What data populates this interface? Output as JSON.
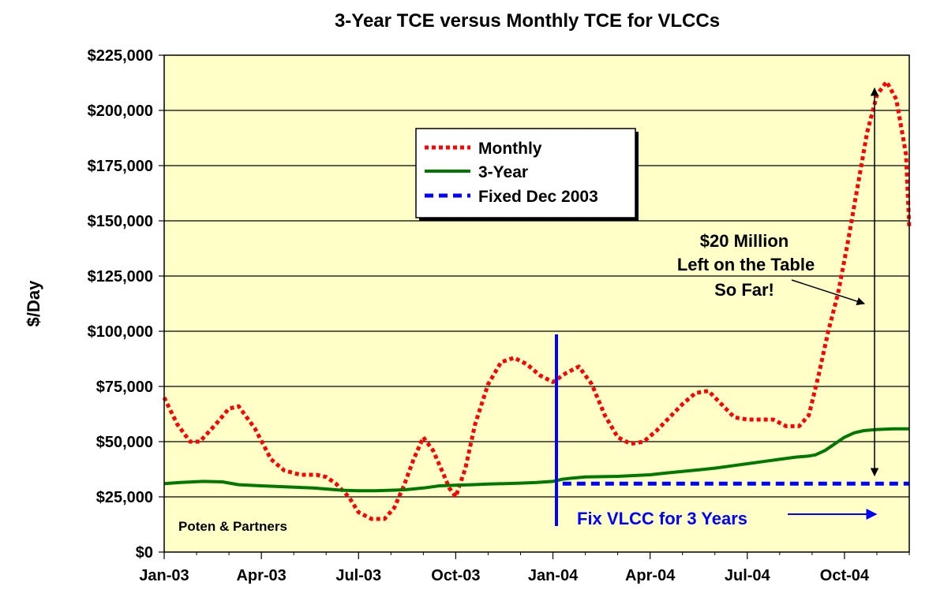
{
  "chart_data": {
    "type": "line",
    "title": "3-Year TCE versus Monthly TCE for VLCCs",
    "xlabel": "",
    "ylabel": "$/Day",
    "ylim": [
      0,
      225000
    ],
    "yticks": [
      0,
      25000,
      50000,
      75000,
      100000,
      125000,
      150000,
      175000,
      200000,
      225000
    ],
    "ytick_labels": [
      "$0",
      "$25,000",
      "$50,000",
      "$75,000",
      "$100,000",
      "$125,000",
      "$150,000",
      "$175,000",
      "$200,000",
      "$225,000"
    ],
    "xlim": [
      0,
      23
    ],
    "xticks": [
      0,
      3,
      6,
      9,
      12,
      15,
      18,
      21
    ],
    "xtick_labels": [
      "Jan-03",
      "Apr-03",
      "Jul-03",
      "Oct-03",
      "Jan-04",
      "Apr-04",
      "Jul-04",
      "Oct-04"
    ],
    "grid": true,
    "legend_position": "upper-center",
    "series": [
      {
        "name": "Monthly",
        "color": "#ff0000",
        "style": "dotted",
        "x": [
          0,
          0.4,
          0.8,
          1.1,
          1.6,
          2,
          2.3,
          2.8,
          3.3,
          3.7,
          4.2,
          4.7,
          5,
          5.3,
          5.7,
          6,
          6.4,
          6.8,
          7.1,
          7.4,
          7.7,
          8,
          8.3,
          8.6,
          8.8,
          9,
          9.3,
          9.6,
          10,
          10.4,
          10.8,
          11.2,
          11.6,
          12,
          12.4,
          12.8,
          13.2,
          13.6,
          14,
          14.4,
          14.8,
          15.2,
          15.6,
          16,
          16.4,
          16.8,
          17.2,
          17.6,
          18,
          18.4,
          18.8,
          19.2,
          19.6,
          19.9,
          20.2,
          20.5,
          20.8,
          21.1,
          21.4,
          21.7,
          22,
          22.3,
          22.6,
          22.9,
          23
        ],
        "y": [
          70000,
          58000,
          50000,
          50000,
          58000,
          65000,
          66000,
          56000,
          42000,
          37000,
          35000,
          35000,
          34000,
          31000,
          25000,
          18000,
          15000,
          15000,
          20000,
          30000,
          42000,
          52000,
          46000,
          36000,
          29000,
          25000,
          38000,
          58000,
          76000,
          86000,
          88000,
          85000,
          80000,
          77000,
          81000,
          84000,
          76000,
          62000,
          52000,
          49000,
          50000,
          55000,
          61000,
          67000,
          72000,
          73000,
          67000,
          61000,
          60000,
          60000,
          60000,
          57000,
          57000,
          62000,
          80000,
          100000,
          117000,
          140000,
          165000,
          190000,
          207000,
          213000,
          205000,
          180000,
          147000
        ]
      },
      {
        "name": "3-Year",
        "color": "#007700",
        "style": "solid",
        "x": [
          0,
          0.5,
          1.2,
          1.8,
          2.3,
          3,
          3.8,
          4.6,
          5.5,
          6,
          6.5,
          7,
          7.5,
          8,
          8.5,
          9,
          9.5,
          10,
          10.5,
          11,
          11.5,
          12,
          12.3,
          12.6,
          13,
          14,
          15,
          15.5,
          16,
          16.5,
          17,
          17.5,
          18,
          18.5,
          19,
          19.5,
          19.9,
          20.1,
          20.4,
          20.7,
          21,
          21.3,
          21.6,
          22,
          22.5,
          23
        ],
        "y": [
          31000,
          31500,
          32000,
          31800,
          30500,
          30000,
          29500,
          29000,
          28000,
          27800,
          27800,
          28000,
          28300,
          29000,
          30000,
          30300,
          30500,
          30800,
          31000,
          31200,
          31500,
          32000,
          33000,
          33500,
          34000,
          34300,
          35000,
          35800,
          36500,
          37200,
          38000,
          39000,
          40000,
          41000,
          42000,
          43000,
          43500,
          44000,
          46000,
          49000,
          52000,
          54000,
          55000,
          55500,
          55800,
          55800
        ]
      },
      {
        "name": "Fixed Dec 2003",
        "color": "#0000ff",
        "style": "dashed",
        "x": [
          12.3,
          23
        ],
        "y": [
          31000,
          31000
        ]
      }
    ],
    "annotations": [
      {
        "text_lines": [
          "$20 Million",
          "Left on the Table",
          "So Far!"
        ],
        "type": "callout-arrow"
      },
      {
        "text": "Fix VLCC for 3 Years",
        "type": "arrow-label",
        "color": "#0000ff"
      },
      {
        "text": "Poten & Partners",
        "type": "source-label"
      }
    ]
  }
}
